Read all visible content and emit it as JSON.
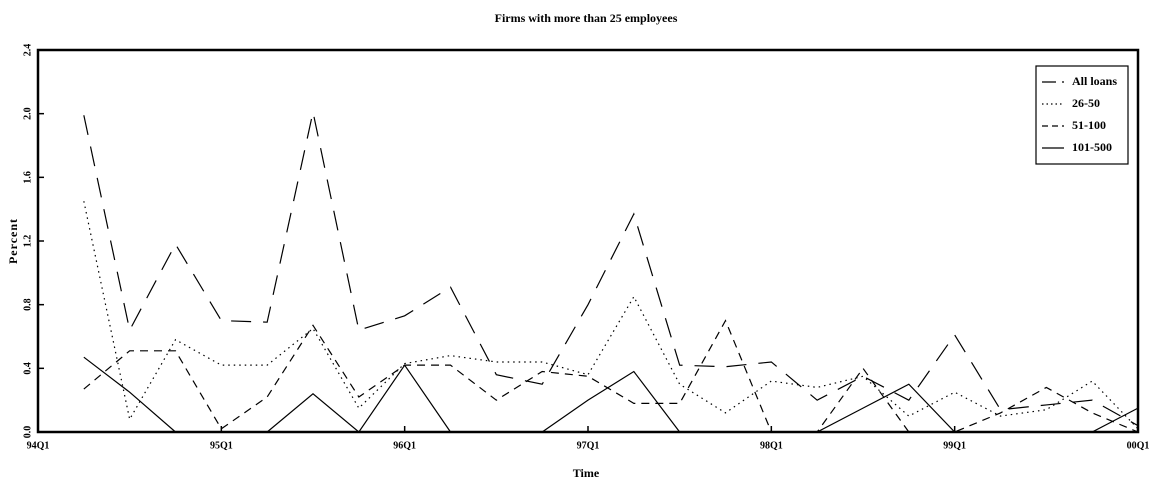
{
  "chart_data": {
    "type": "line",
    "title": "Firms with more than 25 employees",
    "x_label": "Time",
    "y_label": "Percent",
    "categories": [
      "94Q1",
      null,
      null,
      null,
      "95Q1",
      null,
      null,
      null,
      "96Q1",
      null,
      null,
      null,
      "97Q1",
      null,
      null,
      null,
      "98Q1",
      null,
      null,
      null,
      "99Q1",
      null,
      null,
      null,
      "00Q1"
    ],
    "ylim": [
      0,
      2.4
    ],
    "yticks": [
      {
        "value": 0,
        "label": "0.0"
      },
      0.4,
      0.8,
      1.2,
      1.6,
      {
        "value": 2,
        "label": "2.0"
      },
      2.4
    ],
    "legend": "top-right",
    "series": [
      {
        "name": "All loans",
        "color": "#000000",
        "dash": "long-dash",
        "values": [
          null,
          1.99,
          0.64,
          1.18,
          0.7,
          0.69,
          2.01,
          0.64,
          0.73,
          0.91,
          0.36,
          0.3,
          0.8,
          1.37,
          0.42,
          0.41,
          0.44,
          0.2,
          0.35,
          0.2,
          0.61,
          0.14,
          0.17,
          0.2,
          0.04
        ]
      },
      {
        "name": "26-50",
        "color": "#000000",
        "dash": "dotted",
        "values": [
          null,
          1.45,
          0.08,
          0.58,
          0.42,
          0.42,
          0.65,
          0.15,
          0.43,
          0.48,
          0.44,
          0.44,
          0.36,
          0.85,
          0.3,
          0.12,
          0.32,
          0.28,
          0.35,
          0.1,
          0.25,
          0.1,
          0.14,
          0.32,
          0.02
        ]
      },
      {
        "name": "51-100",
        "color": "#000000",
        "dash": "short-dash",
        "values": [
          null,
          0.27,
          0.51,
          0.51,
          0.02,
          0.22,
          0.67,
          0.22,
          0.42,
          0.42,
          0.2,
          0.38,
          0.35,
          0.18,
          0.18,
          0.7,
          0,
          0,
          0.4,
          0,
          0,
          0.12,
          0.28,
          0.12,
          0
        ]
      },
      {
        "name": "101-500",
        "color": "#000000",
        "dash": "solid",
        "values": [
          null,
          0.47,
          0.25,
          0,
          0,
          0,
          0.24,
          0,
          0.42,
          0,
          0,
          0,
          0.2,
          0.38,
          0,
          0,
          0,
          0,
          0.15,
          0.3,
          0,
          0,
          0,
          0,
          0.15
        ]
      }
    ]
  }
}
